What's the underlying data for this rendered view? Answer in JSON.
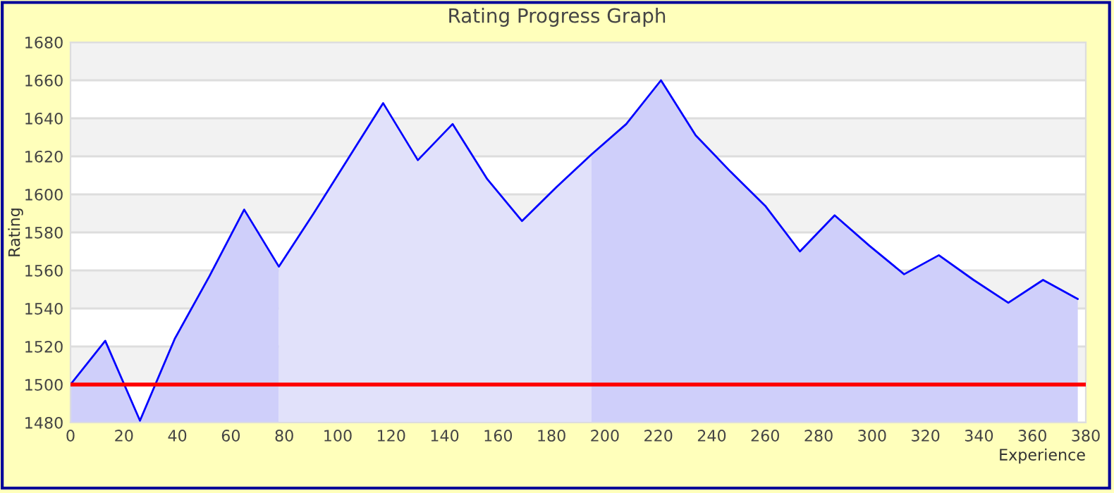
{
  "chart_data": {
    "type": "area",
    "title": "Rating Progress Graph",
    "xlabel": "Experience",
    "ylabel": "Rating",
    "series": [
      {
        "color": "#cfcffa",
        "x": [
          0,
          13,
          26,
          39,
          52,
          65,
          78
        ],
        "values": [
          1500,
          1523,
          1481,
          1524,
          1557,
          1592,
          1562
        ]
      },
      {
        "color": "#e1e1fa",
        "x": [
          78,
          91,
          104,
          117,
          130,
          143,
          156,
          169,
          182,
          195
        ],
        "values": [
          1562,
          1590,
          1619,
          1648,
          1618,
          1637,
          1608,
          1586,
          1604,
          1621
        ]
      },
      {
        "color": "#cfcffa",
        "x": [
          195,
          208,
          221,
          234,
          247,
          260,
          273,
          286,
          299,
          312,
          325,
          338,
          351,
          364,
          377
        ],
        "values": [
          1621,
          1637,
          1660,
          1631,
          1612,
          1594,
          1570,
          1589,
          1573,
          1558,
          1568,
          1555,
          1543,
          1555,
          1545
        ]
      },
      {
        "type": "line",
        "color": "#0000ff",
        "x": [
          0,
          13,
          26,
          39,
          52,
          65,
          78,
          91,
          104,
          117,
          130,
          143,
          156,
          169,
          182,
          195,
          208,
          221,
          234,
          247,
          260,
          273,
          286,
          299,
          312,
          325,
          338,
          351,
          364,
          377
        ],
        "values": [
          1500,
          1523,
          1481,
          1524,
          1557,
          1592,
          1562,
          1590,
          1619,
          1648,
          1618,
          1637,
          1608,
          1586,
          1604,
          1621,
          1637,
          1660,
          1631,
          1612,
          1594,
          1570,
          1589,
          1573,
          1558,
          1568,
          1555,
          1543,
          1555,
          1545
        ]
      }
    ],
    "xlim": [
      0,
      380
    ],
    "xticks": [
      0,
      20,
      40,
      60,
      80,
      100,
      120,
      140,
      160,
      180,
      200,
      220,
      240,
      260,
      280,
      300,
      320,
      340,
      360,
      380
    ],
    "ylim": [
      1480,
      1680
    ],
    "yticks": [
      1480,
      1500,
      1520,
      1540,
      1560,
      1580,
      1600,
      1620,
      1640,
      1660,
      1680
    ],
    "ref_lines": [
      {
        "axis": "y",
        "value": 1500,
        "color": "#ff0000",
        "line_style": "solid"
      }
    ],
    "grid": "y",
    "legend": false,
    "marker": "none",
    "line_style": "solid"
  }
}
